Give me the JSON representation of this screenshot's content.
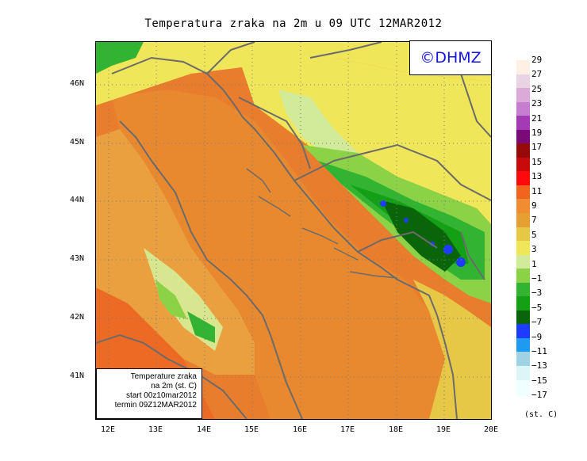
{
  "title": "Temperatura zraka na 2m u 09 UTC 12MAR2012",
  "logo": "©DHMZ",
  "info_box": {
    "line1": "Temperature zraka",
    "line2": "na 2m (st. C)",
    "line3": "start 00z10mar2012",
    "line4": "termin 09Z12MAR2012"
  },
  "y_ticks": [
    "46N",
    "45N",
    "44N",
    "43N",
    "42N",
    "41N"
  ],
  "x_ticks": [
    "12E",
    "13E",
    "14E",
    "15E",
    "16E",
    "17E",
    "18E",
    "19E",
    "20E"
  ],
  "colorbar": {
    "labels": [
      "29",
      "27",
      "25",
      "23",
      "21",
      "19",
      "17",
      "15",
      "13",
      "11",
      "9",
      "7",
      "5",
      "3",
      "1",
      "−1",
      "−3",
      "−5",
      "−7",
      "−9",
      "−11",
      "−13",
      "−15",
      "−17"
    ],
    "colors": [
      "#fff0e6",
      "#ead3e2",
      "#dcaad8",
      "#c87ed0",
      "#a33cb4",
      "#7a0a78",
      "#960a0a",
      "#c80a0a",
      "#ff0a0a",
      "#f0641e",
      "#f08c32",
      "#e6a032",
      "#e6c846",
      "#f0e65a",
      "#d2eb9a",
      "#8cd246",
      "#32b432",
      "#14a014",
      "#0a640a",
      "#1e3cff",
      "#1e9bf0",
      "#a0d2e6",
      "#dcf5f5",
      "#f0ffff"
    ],
    "units": "(st. C)"
  },
  "icons": {
    "logo_icon": "copyright-symbol"
  }
}
